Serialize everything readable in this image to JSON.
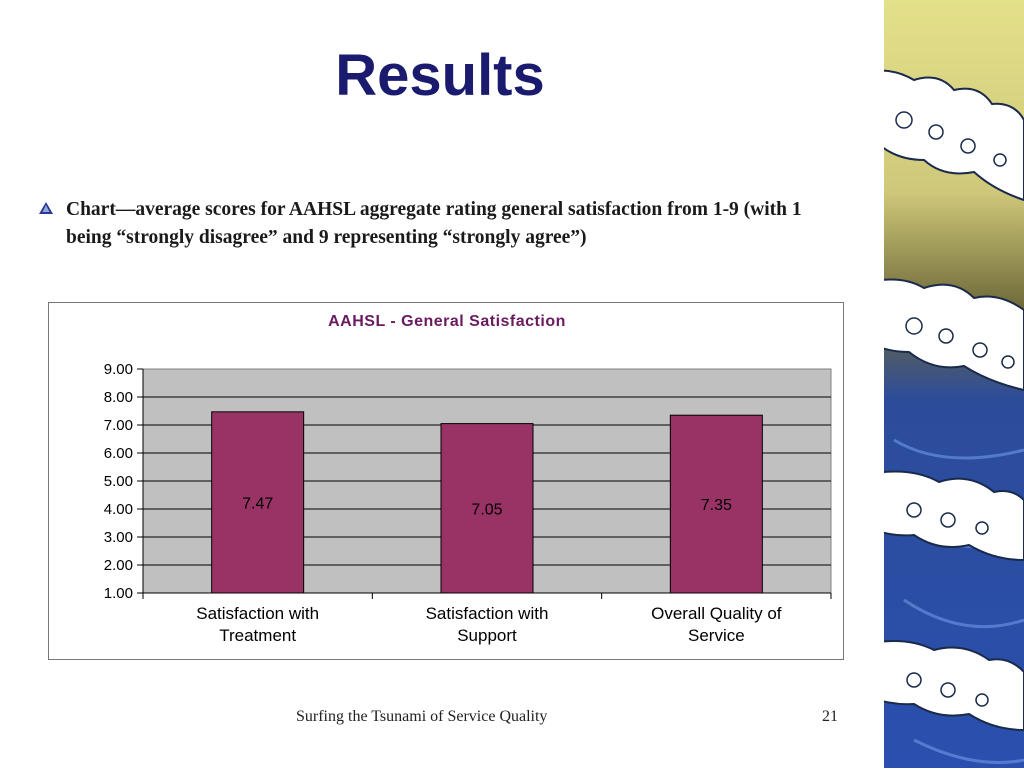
{
  "slide": {
    "title": "Results",
    "bullet": "Chart—average scores for AAHSL aggregate rating general satisfaction from 1-9 (with 1 being “strongly disagree” and 9 representing “strongly agree”)",
    "footer": "Surfing the Tsunami of Service Quality",
    "page_number": "21"
  },
  "colors": {
    "bar": "#993366",
    "plot_bg": "#c0c0c0",
    "title": "#1a1a6e",
    "chart_title": "#6a1a60"
  },
  "chart_data": {
    "type": "bar",
    "title": "AAHSL -  General Satisfaction",
    "categories": [
      [
        "Satisfaction with",
        "Treatment"
      ],
      [
        "Satisfaction with",
        "Support"
      ],
      [
        "Overall Quality of",
        "Service"
      ]
    ],
    "values": [
      7.47,
      7.05,
      7.35
    ],
    "value_labels": [
      "7.47",
      "7.05",
      "7.35"
    ],
    "ylim": [
      1,
      9
    ],
    "yticks": [
      "1.00",
      "2.00",
      "3.00",
      "4.00",
      "5.00",
      "6.00",
      "7.00",
      "8.00",
      "9.00"
    ],
    "grid": true,
    "legend": "none"
  }
}
